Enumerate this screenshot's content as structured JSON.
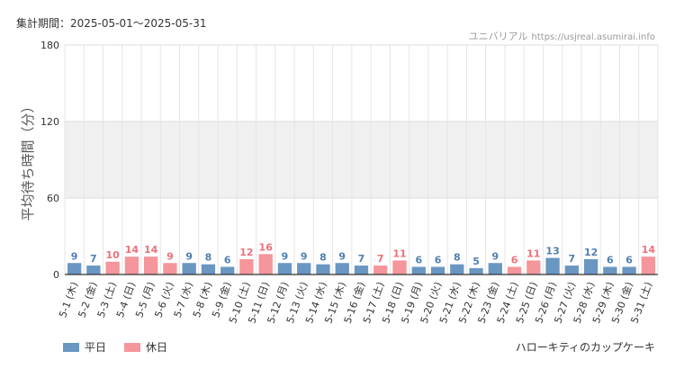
{
  "header": {
    "period": "集計期間：2025-05-01～2025-05-31",
    "site_name": "ユニバリアル",
    "site_url": "https://usjreal.asumirai.info"
  },
  "footer": {
    "attraction": "ハローキティのカップケーキ"
  },
  "colors": {
    "weekday": "#6a96c2",
    "holiday": "#f4969b",
    "weekday_label": "#4f7fb0",
    "holiday_label": "#ef6f78"
  },
  "chart_data": {
    "type": "bar",
    "ylabel": "平均待ち時間（分）",
    "ylim": [
      0,
      180
    ],
    "yticks": [
      0,
      60,
      120,
      180
    ],
    "legend": [
      {
        "key": "weekday",
        "label": "平日"
      },
      {
        "key": "holiday",
        "label": "休日"
      }
    ],
    "categories": [
      "5-1 (木)",
      "5-2 (金)",
      "5-3 (土)",
      "5-4 (日)",
      "5-5 (月)",
      "5-6 (火)",
      "5-7 (水)",
      "5-8 (木)",
      "5-9 (金)",
      "5-10 (土)",
      "5-11 (日)",
      "5-12 (月)",
      "5-13 (火)",
      "5-14 (水)",
      "5-15 (木)",
      "5-16 (金)",
      "5-17 (土)",
      "5-18 (日)",
      "5-19 (月)",
      "5-20 (火)",
      "5-21 (水)",
      "5-22 (木)",
      "5-23 (金)",
      "5-24 (土)",
      "5-25 (日)",
      "5-26 (月)",
      "5-27 (火)",
      "5-28 (水)",
      "5-29 (木)",
      "5-30 (金)",
      "5-31 (土)"
    ],
    "values": [
      9,
      7,
      10,
      14,
      14,
      9,
      9,
      8,
      6,
      12,
      16,
      9,
      9,
      8,
      9,
      7,
      7,
      11,
      6,
      6,
      8,
      5,
      9,
      6,
      11,
      13,
      7,
      12,
      6,
      6,
      14
    ],
    "day_type": [
      "weekday",
      "weekday",
      "holiday",
      "holiday",
      "holiday",
      "holiday",
      "weekday",
      "weekday",
      "weekday",
      "holiday",
      "holiday",
      "weekday",
      "weekday",
      "weekday",
      "weekday",
      "weekday",
      "holiday",
      "holiday",
      "weekday",
      "weekday",
      "weekday",
      "weekday",
      "weekday",
      "holiday",
      "holiday",
      "weekday",
      "weekday",
      "weekday",
      "weekday",
      "weekday",
      "holiday"
    ]
  }
}
